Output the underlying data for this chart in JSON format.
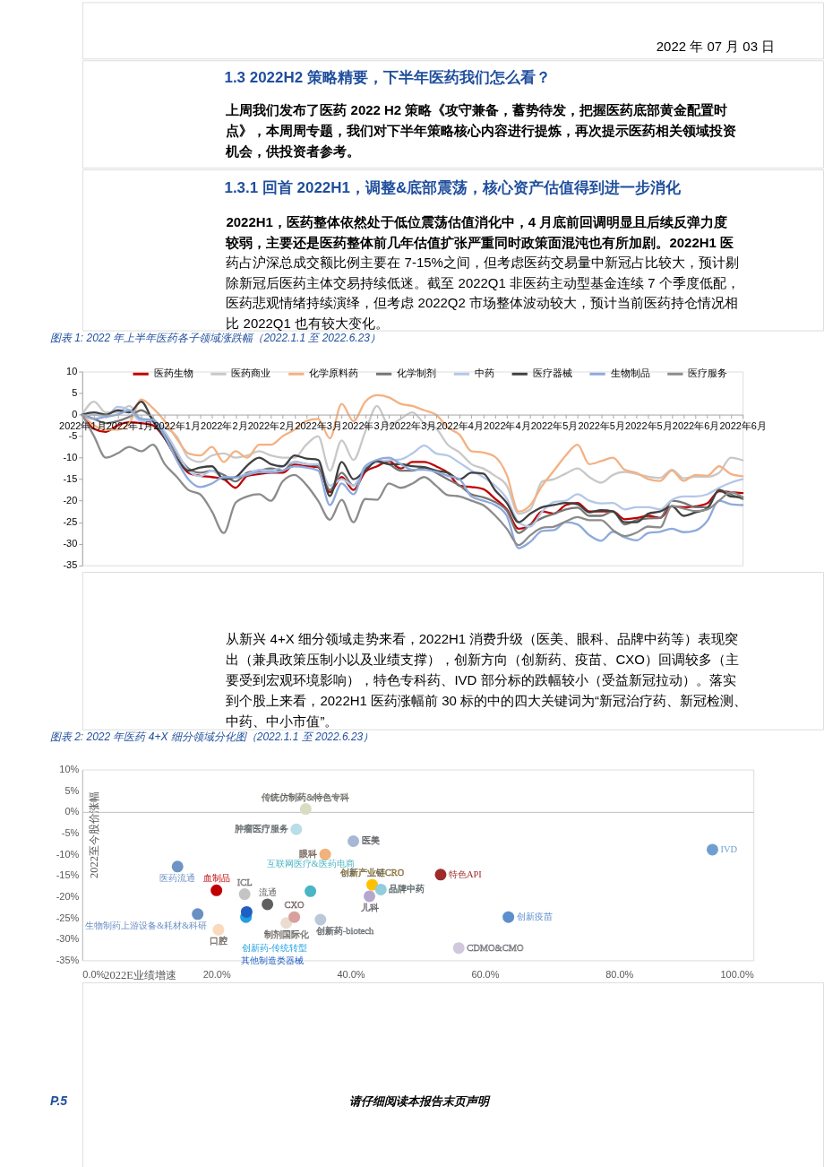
{
  "chart_data": [
    {
      "type": "other",
      "annotations": [
        "2022 年 07 月 03 日"
      ]
    },
    {
      "type": "other",
      "title": "1.3 2022H2 策略精要，下半年医药我们怎么看？",
      "annotations": [
        "上周我们发布了医药 2022 H2 策略《攻守兼备，蓄势待发，把握医药底部黄金配置时",
        "点》，本周周专题，我们对下半年策略核心内容进行提炼，再次提示医药相关领域投资",
        "机会，供投资者参考。"
      ]
    },
    {
      "type": "other",
      "title": "1.3.1 回首 2022H1，调整&底部震荡，核心资产估值得到进一步消化",
      "annotations": [
        "2022H1，医药整体依然处于低位震荡估值消化中，4 月底前回调明显且后续反弹力度",
        "较弱，主要还是医药整体前几年估值扩张严重同时政策面混沌也有所加剧。2022H1 医",
        "药占沪深总成交额比例主要在 7-15%之间，但考虑医药交易量中新冠占比较大，预计剔",
        "除新冠后医药主体交易持续低迷。截至 2022Q1 非医药主动型基金连续 7 个季度低配，",
        "医药悲观情绪持续演绎，但考虑 2022Q2 市场整体波动较大，预计当前医药持仓情况相",
        "比 2022Q1 也有较大变化。"
      ]
    },
    {
      "type": "line",
      "title": "图表 1: 2022 年上半年医药各子领域涨跌幅（2022.1.1 至 2022.6.23）",
      "legend": "top",
      "categories": [
        "2022年1月",
        null,
        null,
        null,
        "2022年1月",
        null,
        null,
        null,
        "2022年1月",
        null,
        null,
        null,
        "2022年2月",
        null,
        null,
        null,
        "2022年2月",
        null,
        null,
        null,
        "2022年3月",
        null,
        null,
        null,
        "2022年3月",
        null,
        null,
        null,
        "2022年3月",
        null,
        null,
        null,
        "2022年4月",
        null,
        null,
        null,
        "2022年4月",
        null,
        null,
        null,
        "2022年5月",
        null,
        null,
        null,
        "2022年5月",
        null,
        null,
        null,
        "2022年5月",
        null,
        null,
        null,
        "2022年6月",
        null,
        null,
        null,
        "2022年6月"
      ],
      "ylim": [
        -35,
        10
      ],
      "yticks": [
        10,
        5,
        0,
        -5,
        -10,
        -15,
        -20,
        -25,
        -30,
        -35
      ],
      "series": [
        {
          "name": "医药生物",
          "color": "#c00000",
          "values": [
            0,
            -3.3,
            -4,
            -2.5,
            -1.8,
            -2,
            -2.5,
            -5.5,
            -10,
            -13.5,
            -14.2,
            -14.5,
            -15,
            -17,
            -14.2,
            -13.8,
            -13.5,
            -13.5,
            -11.6,
            -12,
            -12.2,
            -18,
            -14.5,
            -17.5,
            -13.3,
            -12,
            -10.8,
            -12.5,
            -11,
            -11,
            -12,
            -13.5,
            -16.5,
            -16.8,
            -17.3,
            -19.5,
            -22,
            -26.5,
            -25.5,
            -22.5,
            -23,
            -21,
            -20.5,
            -22.5,
            -22.5,
            -22.5,
            -24.3,
            -24,
            -23.5,
            -24,
            -21.3,
            -21.5,
            -21.3,
            -20.6,
            -17.8,
            -18,
            -18.2
          ]
        },
        {
          "name": "医药商业",
          "color": "#c8c8c8",
          "values": [
            0,
            3,
            0.5,
            0.5,
            2,
            -1,
            -1.5,
            -3,
            -5,
            -10,
            -11,
            -9.5,
            -9,
            -10,
            -9.5,
            -8.5,
            -9.5,
            -10,
            -10,
            -7,
            -5,
            -13,
            -6,
            -10.5,
            -4,
            2,
            -2.5,
            -1,
            0.5,
            -2,
            -3.2,
            -7,
            -8.8,
            -11.5,
            -12.5,
            -14.2,
            -16.5,
            -23,
            -22,
            -15.5,
            -15,
            -13.7,
            -12.5,
            -14.5,
            -15.8,
            -14,
            -13.3,
            -13.8,
            -14.4,
            -14.7,
            -12.8,
            -14.8,
            -14.4,
            -14.4,
            -13.5,
            -10,
            -10.6
          ]
        },
        {
          "name": "化学原料药",
          "color": "#f4b183",
          "values": [
            0,
            -2.5,
            -3.5,
            -3.5,
            -2,
            3.5,
            1.5,
            -1.5,
            -5.5,
            -9,
            -9.5,
            -7.5,
            -11,
            -8.5,
            -10,
            -7,
            -7,
            -5,
            -3.5,
            -1.5,
            -1,
            -5.5,
            2.5,
            -1.5,
            3,
            4.5,
            4,
            2.5,
            2,
            1,
            0,
            -3,
            -4.7,
            -8.5,
            -8.8,
            -9.8,
            -14,
            -22.5,
            -21,
            -16.5,
            -13,
            -9.5,
            -7,
            -11.5,
            -10.8,
            -10,
            -12.8,
            -13.5,
            -15,
            -15.4,
            -13,
            -15.4,
            -14,
            -14.2,
            -12,
            -13.8,
            -14.3
          ]
        },
        {
          "name": "化学制剂",
          "color": "#767676",
          "values": [
            0,
            -1,
            -2,
            -1.5,
            -0.5,
            1,
            -1,
            -4.5,
            -9,
            -12.5,
            -13.5,
            -13,
            -14,
            -15.5,
            -13.5,
            -13,
            -12.5,
            -13,
            -11,
            -11.5,
            -12,
            -17.5,
            -13.5,
            -16.5,
            -12.5,
            -11,
            -11.5,
            -13,
            -13,
            -12.3,
            -13.5,
            -15,
            -16.5,
            -18.5,
            -19.2,
            -20.3,
            -22.3,
            -27.5,
            -25.5,
            -24,
            -23,
            -22,
            -21.6,
            -23.5,
            -23.5,
            -22.5,
            -25.5,
            -24.5,
            -24.1,
            -24,
            -20,
            -20.5,
            -21.5,
            -21.5,
            -17.5,
            -18.5,
            -19.6
          ]
        },
        {
          "name": "中药",
          "color": "#b4c7e7",
          "values": [
            0,
            0,
            -0.5,
            1.8,
            1,
            -1.5,
            -1.5,
            -4,
            -8.5,
            -13,
            -14.3,
            -13,
            -14.8,
            -14.5,
            -13.8,
            -12.8,
            -13,
            -12,
            -11,
            -11.5,
            -11.5,
            -16.5,
            -15,
            -16.5,
            -12,
            -11,
            -10.6,
            -10.4,
            -9,
            -7.2,
            -9,
            -9.5,
            -11.2,
            -13,
            -14.5,
            -16.5,
            -19.5,
            -25,
            -26,
            -22.5,
            -20.3,
            -20,
            -18.5,
            -20,
            -20.6,
            -20.5,
            -22,
            -21.5,
            -21.5,
            -22,
            -19.8,
            -19,
            -19,
            -18.5,
            -17,
            -15.8,
            -15
          ]
        },
        {
          "name": "医疗器械",
          "color": "#404040",
          "values": [
            0,
            0.5,
            0,
            1,
            0.5,
            3,
            -1.5,
            -5.5,
            -10,
            -13,
            -12.3,
            -12,
            -15,
            -14.5,
            -11.8,
            -10,
            -11.5,
            -12,
            -9.5,
            -10.2,
            -10.5,
            -18.9,
            -11,
            -15,
            -13,
            -10.8,
            -11.5,
            -11.5,
            -12,
            -12.2,
            -13,
            -13.5,
            -15,
            -13.5,
            -13.7,
            -17.5,
            -20.5,
            -25,
            -23,
            -21.5,
            -21,
            -20.5,
            -20.8,
            -22.7,
            -22.2,
            -22.5,
            -25,
            -25,
            -23,
            -22.5,
            -21.3,
            -23.5,
            -22.7,
            -21.8,
            -17.5,
            -19,
            -19.2
          ]
        },
        {
          "name": "生物制品",
          "color": "#8eaadb",
          "values": [
            0,
            -1,
            -0.5,
            0,
            1,
            -1,
            -1.2,
            -5,
            -10.5,
            -15,
            -16.8,
            -16,
            -14.5,
            -14.6,
            -14,
            -13.4,
            -13.4,
            -13,
            -12,
            -12.3,
            -13,
            -21,
            -16,
            -18.5,
            -12,
            -10.5,
            -10,
            -11.5,
            -12.8,
            -12.8,
            -13.3,
            -14.2,
            -15,
            -19,
            -20,
            -21,
            -23.5,
            -31,
            -29.5,
            -27,
            -26.8,
            -25,
            -25.5,
            -28,
            -29.3,
            -27.2,
            -28.5,
            -29.2,
            -27.5,
            -27.2,
            -26.5,
            -27.3,
            -26.9,
            -24.7,
            -20,
            -20.8,
            -21
          ]
        },
        {
          "name": "医疗服务",
          "color": "#8c8c8c",
          "values": [
            0,
            -5,
            -10,
            -9,
            -7.5,
            -8.5,
            -7,
            -11.5,
            -14.4,
            -17.5,
            -18.5,
            -22.5,
            -27.5,
            -20.5,
            -19,
            -18.5,
            -20,
            -15.5,
            -14,
            -16.3,
            -20,
            -24.4,
            -19.8,
            -25,
            -19.6,
            -19.8,
            -16,
            -17,
            -16,
            -14.5,
            -16.5,
            -18.7,
            -19,
            -20,
            -21,
            -23.4,
            -26.5,
            -30.3,
            -28,
            -26.3,
            -26,
            -24.8,
            -23.8,
            -24.5,
            -24.5,
            -26.8,
            -28.2,
            -27.4,
            -26,
            -26.2,
            -21.2,
            -21.8,
            -22.4,
            -22,
            -20,
            -18,
            -19.2
          ]
        }
      ]
    },
    {
      "type": "other",
      "annotations": [
        "从新兴 4+X 细分领域走势来看，2022H1 消费升级（医美、眼科、品牌中药等）表现突",
        "出（兼具政策压制小以及业绩支撑），创新方向（创新药、疫苗、CXO）回调较多（主",
        "要受到宏观环境影响），特色专科药、IVD 部分标的跌幅较小（受益新冠拉动）。落实",
        "到个股上来看，2022H1 医药涨幅前 30 标的中的四大关键词为“新冠治疗药、新冠检测、",
        "中药、中小市值”。"
      ]
    },
    {
      "type": "scatter",
      "title": "图表 2: 2022 年医药 4+X 细分领域分化图（2022.1.1 至 2022.6.23）",
      "xlabel": "2022E业绩增速",
      "ylabel": "2022至今股价涨幅",
      "marker": "circle",
      "xlim": [
        0,
        100
      ],
      "xticks": [
        {
          "value": 0,
          "label": "0.0%"
        },
        {
          "value": 20,
          "label": "20.0%"
        },
        {
          "value": 40,
          "label": "40.0%"
        },
        {
          "value": 60,
          "label": "60.0%"
        },
        {
          "value": 80,
          "label": "80.0%"
        },
        {
          "value": 100,
          "label": "100.0%"
        }
      ],
      "ylim": [
        -35,
        10
      ],
      "yticks": [
        {
          "value": 10,
          "label": "10%"
        },
        {
          "value": 5,
          "label": "5%"
        },
        {
          "value": 0,
          "label": "0%"
        },
        {
          "value": -5,
          "label": "-5%"
        },
        {
          "value": -10,
          "label": "-10%"
        },
        {
          "value": -15,
          "label": "-15%"
        },
        {
          "value": -20,
          "label": "-20%"
        },
        {
          "value": -25,
          "label": "-25%"
        },
        {
          "value": -30,
          "label": "-30%"
        },
        {
          "value": -35,
          "label": "-35%"
        }
      ],
      "series": [
        {
          "name": "传统仿制药&特色专科",
          "color": "#d9dcc0",
          "x": [
            33.3
          ],
          "values": [
            0.7
          ]
        },
        {
          "name": "肿瘤医疗服务",
          "color": "#b9dde9",
          "x": [
            31.9
          ],
          "values": [
            -4.1
          ]
        },
        {
          "name": "医美",
          "color": "#a5b8d4",
          "x": [
            40.4
          ],
          "values": [
            -6.9
          ]
        },
        {
          "name": "眼科",
          "color": "#f2b27c",
          "x": [
            36.2
          ],
          "values": [
            -10.0
          ]
        },
        {
          "name": "创新产业链CRO",
          "color": "#ffc000",
          "x": [
            43.2
          ],
          "values": [
            -17.2
          ]
        },
        {
          "name": "医药流通",
          "color": "#6f93c4",
          "x": [
            14.2
          ],
          "values": [
            -12.9
          ]
        },
        {
          "name": "流通",
          "color": "#5f5f5f",
          "x": [
            27.6
          ],
          "values": [
            -21.8
          ]
        },
        {
          "name": "互联网医疗&医药电商",
          "color": "#4bb5c6",
          "x": [
            34.0
          ],
          "values": [
            -18.7
          ]
        },
        {
          "name": "品牌中药",
          "color": "#92cddc",
          "x": [
            44.5
          ],
          "values": [
            -18.3
          ]
        },
        {
          "name": "ICL",
          "color": "#c4c4c4",
          "x": [
            24.2
          ],
          "values": [
            -19.4
          ]
        },
        {
          "name": "血制品",
          "color": "#c00000",
          "x": [
            20.0
          ],
          "values": [
            -18.5
          ]
        },
        {
          "name": "儿科",
          "color": "#b4a7d0",
          "x": [
            42.8
          ],
          "values": [
            -19.9
          ]
        },
        {
          "name": "特色API",
          "color": "#9e2a2a",
          "x": [
            53.4
          ],
          "values": [
            -14.8
          ]
        },
        {
          "name": "制剂国际化",
          "color": "#eadcd0",
          "x": [
            30.4
          ],
          "values": [
            -26.2
          ]
        },
        {
          "name": "CXO",
          "color": "#d8a09c",
          "x": [
            31.6
          ],
          "values": [
            -24.8
          ]
        },
        {
          "name": "IVD",
          "color": "#6e9fd0",
          "x": [
            93.9
          ],
          "values": [
            -8.9
          ]
        },
        {
          "name": "生物制药上游设备&耗材&科研",
          "color": "#6a8fc4",
          "x": [
            17.2
          ],
          "values": [
            -24.1
          ]
        },
        {
          "name": "创新药-传统转型",
          "color": "#1e9fe0",
          "x": [
            24.4
          ],
          "values": [
            -24.8
          ]
        },
        {
          "name": "创新药-biotech",
          "color": "#b9c9d9",
          "x": [
            35.5
          ],
          "values": [
            -25.4
          ]
        },
        {
          "name": "创新疫苗",
          "color": "#5d8fcc",
          "x": [
            63.5
          ],
          "values": [
            -24.8
          ]
        },
        {
          "name": "口腔",
          "color": "#fbd9bd",
          "x": [
            20.3
          ],
          "values": [
            -27.8
          ]
        },
        {
          "name": "CDMO&CMO",
          "color": "#d2c8de",
          "x": [
            56.1
          ],
          "values": [
            -32.1
          ]
        },
        {
          "name": "其他制造类器械",
          "color": "#1f5fc4",
          "x": [
            24.5
          ],
          "values": [
            -23.6
          ]
        }
      ]
    },
    {
      "type": "other",
      "annotations": [
        "P.5",
        "请仔细阅读本报告末页声明"
      ]
    }
  ]
}
